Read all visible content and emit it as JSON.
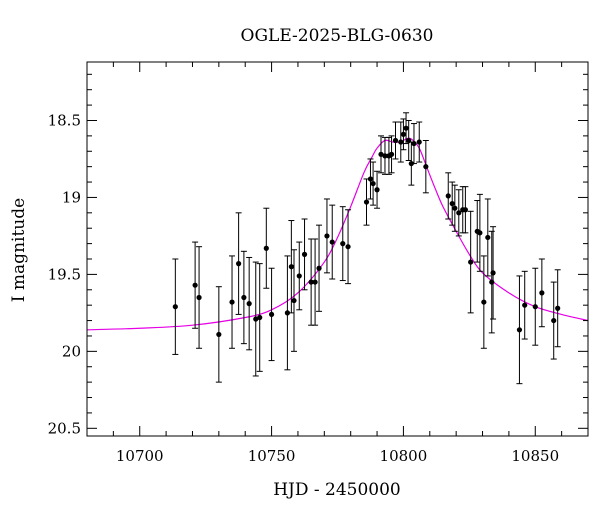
{
  "chart_data": {
    "type": "scatter",
    "title": "OGLE-2025-BLG-0630",
    "xlabel": "HJD - 2450000",
    "ylabel": "I magnitude",
    "xlim": [
      10680,
      10870
    ],
    "ylim": [
      20.55,
      18.12
    ],
    "y_inverted": true,
    "grid": false,
    "x_ticks": [
      10700,
      10750,
      10800,
      10850
    ],
    "x_tick_labels": [
      "10700",
      "10750",
      "10800",
      "10850"
    ],
    "y_ticks": [
      18.5,
      19,
      19.5,
      20,
      20.5
    ],
    "y_tick_labels": [
      "18.5",
      "19",
      "19.5",
      "20",
      "20.5"
    ],
    "colors": {
      "data": "#000000",
      "model": "#e600e6"
    },
    "series": [
      {
        "kind": "points_with_errorbars",
        "x": [
          10713.5,
          10721,
          10722.5,
          10730,
          10735,
          10737.5,
          10739.5,
          10741.5,
          10744,
          10745.5,
          10748,
          10750,
          10756,
          10757.5,
          10758.5,
          10760.5,
          10762.5,
          10765,
          10766.5,
          10768,
          10771,
          10773,
          10777,
          10779,
          10786,
          10787.5,
          10788.5,
          10790,
          10791.5,
          10793,
          10794.5,
          10795.5,
          10797,
          10799,
          10800,
          10801,
          10802,
          10803,
          10804,
          10806,
          10808.5,
          10817,
          10818.5,
          10819.5,
          10821,
          10822.5,
          10823.5,
          10825.5,
          10828,
          10829,
          10830.5,
          10832,
          10833.5,
          10834,
          10844,
          10846,
          10850,
          10852.5,
          10857,
          10858.5
        ],
        "y": [
          19.71,
          19.57,
          19.65,
          19.89,
          19.68,
          19.43,
          19.65,
          19.69,
          19.79,
          19.78,
          19.33,
          19.76,
          19.75,
          19.45,
          19.67,
          19.51,
          19.37,
          19.55,
          19.55,
          19.46,
          19.25,
          19.29,
          19.3,
          19.32,
          19.03,
          18.88,
          18.91,
          18.95,
          18.72,
          18.73,
          18.73,
          18.72,
          18.63,
          18.64,
          18.59,
          18.55,
          18.63,
          18.78,
          18.65,
          18.64,
          18.8,
          18.99,
          19.04,
          19.07,
          19.1,
          19.08,
          19.08,
          19.42,
          19.22,
          19.23,
          19.68,
          19.26,
          19.55,
          19.49,
          19.86,
          19.7,
          19.71,
          19.62,
          19.8,
          19.72
        ],
        "err": [
          0.31,
          0.28,
          0.33,
          0.31,
          0.3,
          0.33,
          0.3,
          0.3,
          0.37,
          0.35,
          0.26,
          0.3,
          0.37,
          0.3,
          0.33,
          0.22,
          0.23,
          0.28,
          0.28,
          0.28,
          0.24,
          0.24,
          0.24,
          0.24,
          0.15,
          0.13,
          0.14,
          0.12,
          0.12,
          0.12,
          0.12,
          0.12,
          0.12,
          0.13,
          0.1,
          0.1,
          0.13,
          0.14,
          0.13,
          0.13,
          0.17,
          0.15,
          0.14,
          0.15,
          0.15,
          0.15,
          0.15,
          0.33,
          0.2,
          0.25,
          0.3,
          0.25,
          0.33,
          0.3,
          0.35,
          0.22,
          0.25,
          0.22,
          0.25,
          0.25
        ]
      },
      {
        "kind": "model_curve",
        "x": [
          10680,
          10700,
          10720,
          10740,
          10750,
          10760,
          10770,
          10775,
          10780,
          10785,
          10788,
          10790,
          10793,
          10796,
          10799,
          10801,
          10803,
          10806,
          10809,
          10812,
          10815,
          10820,
          10825,
          10830,
          10840,
          10850,
          10860,
          10870
        ],
        "y": [
          19.86,
          19.85,
          19.83,
          19.78,
          19.73,
          19.62,
          19.42,
          19.26,
          19.06,
          18.84,
          18.74,
          18.68,
          18.63,
          18.64,
          18.64,
          18.62,
          18.62,
          18.68,
          18.81,
          18.94,
          19.06,
          19.22,
          19.37,
          19.49,
          19.62,
          19.71,
          19.76,
          19.8
        ]
      }
    ]
  }
}
